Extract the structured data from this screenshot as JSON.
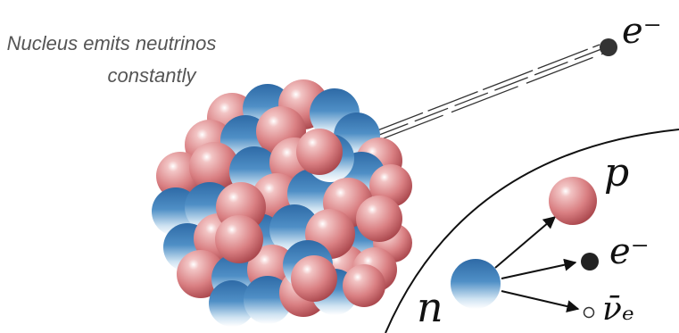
{
  "caption": {
    "lines": [
      "Nucleus emits neutrinos",
      "constantly"
    ]
  },
  "labels": {
    "emitted_electron": "e⁻",
    "proton": "p",
    "electron": "e⁻",
    "antineutrino": "ν̄ₑ",
    "neutron": "n"
  }
}
